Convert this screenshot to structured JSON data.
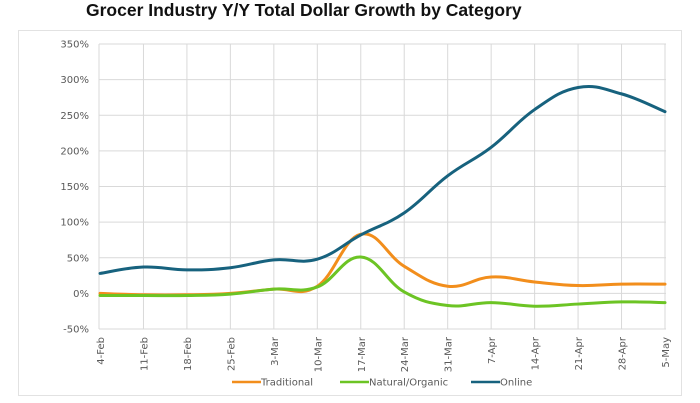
{
  "chart_data": {
    "type": "line",
    "title": "Grocer Industry Y/Y Total Dollar Growth by Category",
    "xlabel": "",
    "ylabel": "",
    "categories": [
      "4-Feb",
      "11-Feb",
      "18-Feb",
      "25-Feb",
      "3-Mar",
      "10-Mar",
      "17-Mar",
      "24-Mar",
      "31-Mar",
      "7-Apr",
      "14-Apr",
      "21-Apr",
      "28-Apr",
      "5-May"
    ],
    "ylim": [
      -50,
      350
    ],
    "yticks": [
      -50,
      0,
      50,
      100,
      150,
      200,
      250,
      300,
      350
    ],
    "ytick_labels": [
      "-50%",
      "0%",
      "50%",
      "100%",
      "150%",
      "200%",
      "250%",
      "300%",
      "350%"
    ],
    "grid": true,
    "legend_position": "bottom",
    "smooth": true,
    "series": [
      {
        "name": "Traditional",
        "color": "#F28E1C",
        "values": [
          0,
          -2,
          -2,
          0,
          6,
          10,
          83,
          38,
          10,
          23,
          16,
          11,
          13,
          13
        ]
      },
      {
        "name": "Natural/Organic",
        "color": "#6CC424",
        "values": [
          -3,
          -3,
          -3,
          -1,
          6,
          9,
          51,
          2,
          -17,
          -13,
          -18,
          -15,
          -12,
          -13
        ]
      },
      {
        "name": "Online",
        "color": "#17627E",
        "values": [
          28,
          37,
          33,
          36,
          47,
          48,
          82,
          113,
          165,
          205,
          258,
          289,
          280,
          255
        ]
      }
    ]
  }
}
